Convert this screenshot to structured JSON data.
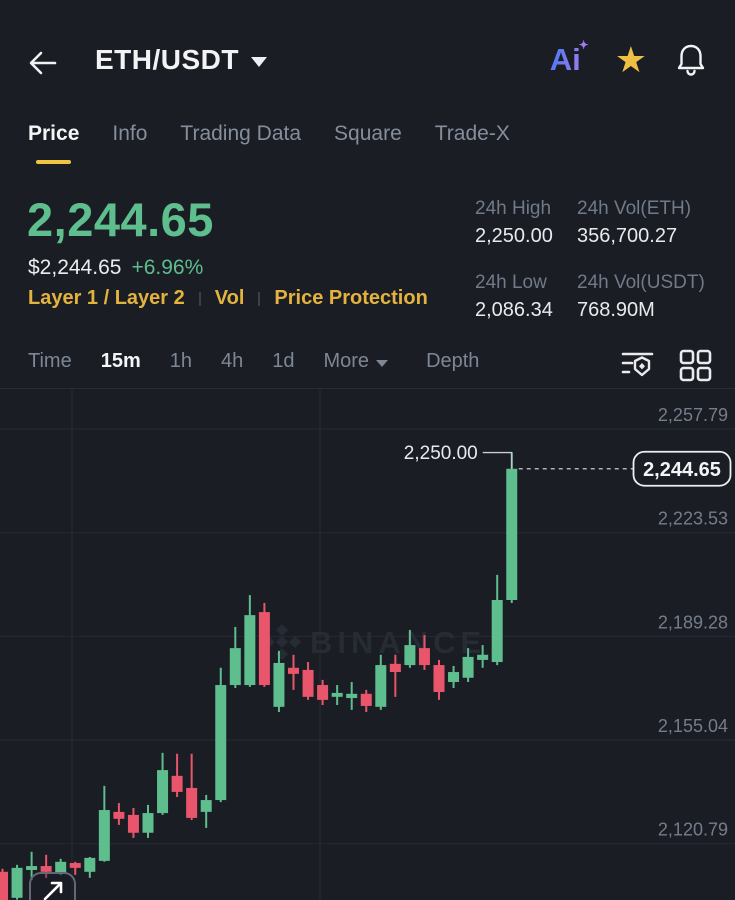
{
  "header": {
    "pair": "ETH/USDT",
    "icons": [
      "back-arrow",
      "pair-dropdown-caret",
      "ai-assistant",
      "favorite-star",
      "notification-bell"
    ],
    "ai_label": "Ai",
    "ai_gradient": [
      "#5B79F2",
      "#9B7BF0"
    ],
    "star_color": "#EFBF45"
  },
  "tabs": [
    {
      "label": "Price",
      "active": true
    },
    {
      "label": "Info",
      "active": false
    },
    {
      "label": "Trading Data",
      "active": false
    },
    {
      "label": "Square",
      "active": false
    },
    {
      "label": "Trade-X",
      "active": false
    }
  ],
  "price_section": {
    "last_price": "2,244.65",
    "fiat_price": "$2,244.65",
    "change_pct": "+6.96%",
    "up_color": "#5FBE8D",
    "tags": [
      "Layer 1 / Layer 2",
      "Vol",
      "Price Protection"
    ],
    "tag_color": "#E4B33E"
  },
  "stats": [
    {
      "label": "24h High",
      "value": "2,250.00"
    },
    {
      "label": "24h Vol(ETH)",
      "value": "356,700.27"
    },
    {
      "label": "24h Low",
      "value": "2,086.34"
    },
    {
      "label": "24h Vol(USDT)",
      "value": "768.90M"
    }
  ],
  "toolbar": {
    "intervals": [
      "Time",
      "15m",
      "1h",
      "4h",
      "1d"
    ],
    "selected_interval": "15m",
    "more_label": "More",
    "depth_label": "Depth",
    "right_icons": [
      "indicators-icon",
      "grid-layout-icon"
    ]
  },
  "chart_data": {
    "type": "candlestick",
    "symbol": "ETH/USDT",
    "interval": "15m",
    "watermark": "BINANCE",
    "y_axis": {
      "ticks": [
        2257.79,
        2223.53,
        2189.28,
        2155.04,
        2120.79
      ],
      "tick_labels": [
        "2,257.79",
        "2,223.53",
        "2,189.28",
        "2,155.04",
        "2,120.79"
      ]
    },
    "current_price": 2244.65,
    "current_price_label": "2,244.65",
    "high_annotation": {
      "price": 2250.0,
      "label": "2,250.00"
    },
    "colors": {
      "up": "#5FBE8D",
      "down": "#E9566B",
      "grid": "#262A32",
      "axis_text": "#747D8B",
      "watermark": "#262B34"
    },
    "candles_format": [
      "open",
      "high",
      "low",
      "close"
    ],
    "candles": [
      [
        2111.5,
        2112.5,
        2100.5,
        2101.6
      ],
      [
        2102.9,
        2113.8,
        2102.3,
        2112.8
      ],
      [
        2112.1,
        2118.1,
        2108.8,
        2113.4
      ],
      [
        2113.4,
        2117.1,
        2109.5,
        2111.5
      ],
      [
        2111.1,
        2115.8,
        2110.5,
        2114.8
      ],
      [
        2114.4,
        2114.8,
        2110.5,
        2112.8
      ],
      [
        2111.5,
        2116.4,
        2109.5,
        2116.1
      ],
      [
        2115.1,
        2139.9,
        2114.8,
        2131.9
      ],
      [
        2131.3,
        2134.2,
        2127.0,
        2129.0
      ],
      [
        2130.3,
        2132.6,
        2122.7,
        2124.4
      ],
      [
        2124.4,
        2133.6,
        2122.7,
        2130.9
      ],
      [
        2130.9,
        2150.8,
        2130.3,
        2145.1
      ],
      [
        2143.2,
        2150.5,
        2136.2,
        2137.9
      ],
      [
        2139.2,
        2150.5,
        2128.6,
        2129.3
      ],
      [
        2131.3,
        2136.9,
        2126.0,
        2135.2
      ],
      [
        2135.2,
        2178.9,
        2134.5,
        2173.2
      ],
      [
        2173.2,
        2192.4,
        2172.2,
        2185.4
      ],
      [
        2173.2,
        2202.9,
        2172.6,
        2196.3
      ],
      [
        2197.3,
        2200.3,
        2172.6,
        2173.2
      ],
      [
        2166.0,
        2184.5,
        2164.3,
        2180.5
      ],
      [
        2178.9,
        2183.2,
        2171.6,
        2176.9
      ],
      [
        2178.2,
        2180.8,
        2168.3,
        2169.3
      ],
      [
        2173.2,
        2174.9,
        2166.6,
        2168.3
      ],
      [
        2169.3,
        2173.2,
        2166.6,
        2170.6
      ],
      [
        2168.9,
        2174.2,
        2165.0,
        2170.3
      ],
      [
        2170.3,
        2171.6,
        2164.3,
        2166.3
      ],
      [
        2166.0,
        2183.2,
        2165.0,
        2179.8
      ],
      [
        2180.2,
        2183.2,
        2169.3,
        2177.5
      ],
      [
        2179.8,
        2191.4,
        2178.9,
        2186.4
      ],
      [
        2185.4,
        2189.7,
        2178.2,
        2179.8
      ],
      [
        2179.8,
        2181.5,
        2168.3,
        2170.9
      ],
      [
        2174.2,
        2179.5,
        2172.2,
        2177.5
      ],
      [
        2175.6,
        2185.4,
        2174.2,
        2182.5
      ],
      [
        2181.5,
        2186.4,
        2178.9,
        2183.2
      ],
      [
        2180.8,
        2209.6,
        2179.8,
        2201.3
      ],
      [
        2201.3,
        2250.0,
        2200.3,
        2244.65
      ]
    ]
  }
}
